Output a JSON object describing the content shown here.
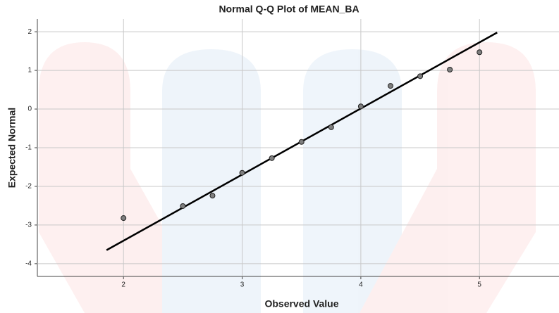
{
  "chart_data": {
    "type": "scatter",
    "title": "Normal Q-Q Plot of MEAN_BA",
    "x_label": "Observed Value",
    "y_label": "Expected Normal",
    "series": [
      {
        "name": "MEAN_BA",
        "color": "#7f7f7f",
        "x": [
          2,
          2.5,
          2.75,
          3,
          3.25,
          3.5,
          3.75,
          4,
          4.25,
          4.5,
          4.75,
          5
        ],
        "values": [
          -2.82,
          -2.51,
          -2.24,
          -1.65,
          -1.27,
          -0.85,
          -0.47,
          0.07,
          0.6,
          0.85,
          1.02,
          1.47
        ]
      }
    ],
    "reference_line": {
      "color": "#000000",
      "x": [
        1.857,
        5.149
      ],
      "values": [
        -3.65,
        1.98
      ]
    },
    "xlim": [
      1.274,
      5.67
    ],
    "ylim": [
      -4.33,
      2.33
    ],
    "xticks": [
      2,
      3,
      4,
      5
    ],
    "yticks": [
      2,
      1,
      0,
      -1,
      -2,
      -3,
      -4
    ],
    "grid": true
  }
}
